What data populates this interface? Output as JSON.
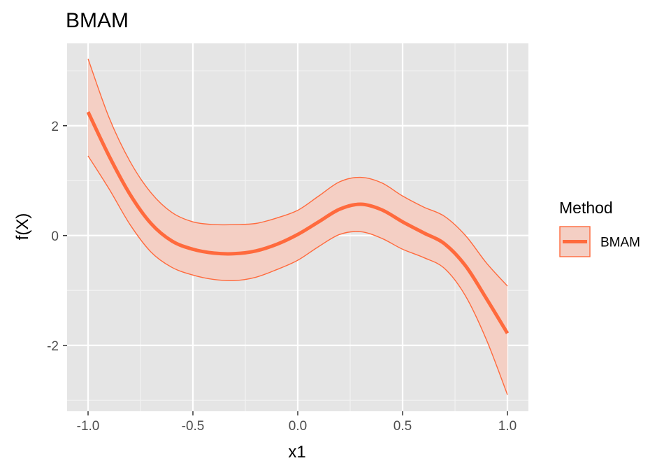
{
  "chart_data": {
    "type": "line",
    "title": "BMAM",
    "xlabel": "x1",
    "ylabel": "f(X)",
    "xlim": [
      -1.1,
      1.1
    ],
    "ylim": [
      -3.2,
      3.5
    ],
    "x_ticks": [
      -1.0,
      -0.5,
      0.0,
      0.5,
      1.0
    ],
    "x_tick_labels": [
      "-1.0",
      "-0.5",
      "0.0",
      "0.5",
      "1.0"
    ],
    "y_ticks": [
      -2,
      0,
      2
    ],
    "y_tick_labels": [
      "-2",
      "0",
      "2"
    ],
    "grid": true,
    "legend": {
      "title": "Method",
      "placement": "right"
    },
    "series": [
      {
        "name": "BMAM",
        "color": "#ff6a3d",
        "ribbon_fill": "#f4cfc4",
        "x": [
          -1.0,
          -0.9,
          -0.8,
          -0.7,
          -0.6,
          -0.5,
          -0.4,
          -0.3,
          -0.2,
          -0.1,
          0.0,
          0.1,
          0.2,
          0.3,
          0.4,
          0.5,
          0.6,
          0.7,
          0.8,
          0.9,
          1.0
        ],
        "y": [
          2.25,
          1.45,
          0.75,
          0.22,
          -0.1,
          -0.25,
          -0.32,
          -0.33,
          -0.28,
          -0.16,
          0.02,
          0.25,
          0.48,
          0.57,
          0.47,
          0.25,
          0.05,
          -0.15,
          -0.55,
          -1.15,
          -1.78
        ],
        "lower": [
          1.45,
          0.85,
          0.2,
          -0.3,
          -0.58,
          -0.72,
          -0.8,
          -0.82,
          -0.76,
          -0.62,
          -0.45,
          -0.2,
          0.02,
          0.07,
          -0.05,
          -0.25,
          -0.4,
          -0.6,
          -1.1,
          -1.9,
          -2.9
        ],
        "upper": [
          3.22,
          2.15,
          1.35,
          0.78,
          0.42,
          0.25,
          0.2,
          0.2,
          0.22,
          0.32,
          0.46,
          0.72,
          0.98,
          1.06,
          0.96,
          0.72,
          0.52,
          0.35,
          0.0,
          -0.5,
          -0.92
        ]
      }
    ]
  }
}
